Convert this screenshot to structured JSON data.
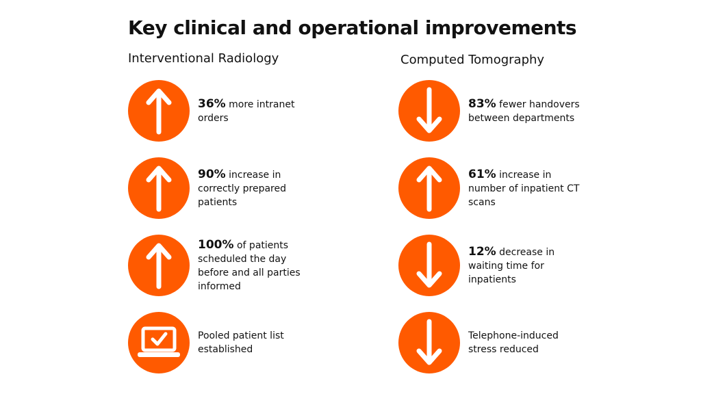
{
  "title": "Key clinical and operational improvements",
  "columns": [
    {
      "heading": "Interventional Radiology",
      "items": [
        {
          "icon": "arrow-up-icon",
          "value": "36%",
          "text": "more intranet orders"
        },
        {
          "icon": "arrow-up-icon",
          "value": "90%",
          "text": "increase in correctly prepared patients"
        },
        {
          "icon": "arrow-up-icon",
          "value": "100%",
          "text": "of patients scheduled the day before and all parties informed"
        },
        {
          "icon": "laptop-check-icon",
          "value": "",
          "text": "Pooled patient list established"
        }
      ]
    },
    {
      "heading": "Computed Tomography",
      "items": [
        {
          "icon": "arrow-down-icon",
          "value": "83%",
          "text": "fewer handovers between departments"
        },
        {
          "icon": "arrow-up-icon",
          "value": "61%",
          "text": "increase in number of inpatient CT scans"
        },
        {
          "icon": "arrow-down-icon",
          "value": "12%",
          "text": "decrease in waiting time for inpatients"
        },
        {
          "icon": "arrow-down-icon",
          "value": "",
          "text": "Telephone-induced stress reduced"
        }
      ]
    }
  ],
  "colors": {
    "accent": "#ff5a00",
    "icon": "#ffffff",
    "text": "#111111"
  }
}
